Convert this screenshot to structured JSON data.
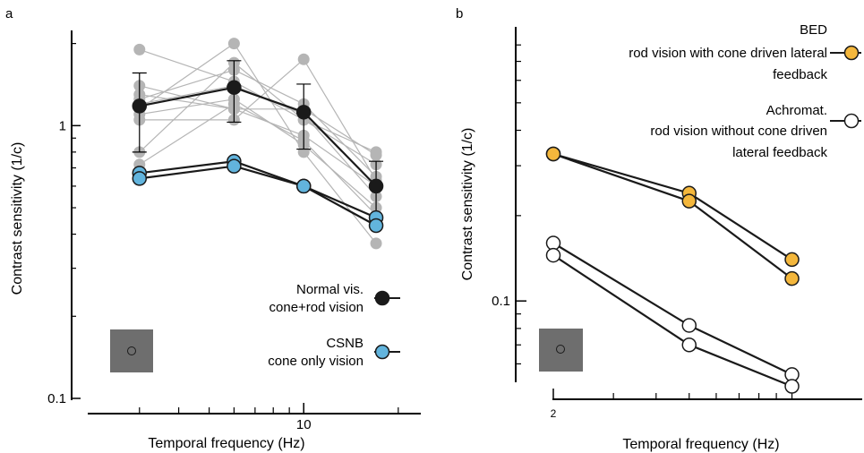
{
  "colors": {
    "normal": "#1a1a1a",
    "csnb": "#62b4dd",
    "individual": "#b5b5b5",
    "bed": "#f4b73c",
    "achromat": "#ffffff",
    "stimulus_box": "#6e6e6e",
    "line": "#1a1a1a"
  },
  "icon_names": [
    "stimulus-square-icon",
    "marker-filled-circle-icon",
    "marker-open-circle-icon"
  ],
  "chart_data": [
    {
      "type": "line",
      "panel_label": "a",
      "xlabel": "Temporal frequency (Hz)",
      "ylabel": "Contrast sensitivity (1/c)",
      "x_scale": "log",
      "y_scale": "log",
      "xlim": [
        2.5,
        19
      ],
      "ylim": [
        0.1,
        2.2
      ],
      "x_tick_labels": [
        "10"
      ],
      "y_tick_labels": [
        "0.1",
        "1"
      ],
      "x_minor_ticks": [
        3,
        4,
        5,
        6,
        7,
        8,
        9,
        10,
        20
      ],
      "grid": false,
      "legend": {
        "placement": "bottom-right",
        "entries": [
          {
            "series": "normal",
            "lines": [
              "Normal vis.",
              "cone+rod vision"
            ]
          },
          {
            "series": "csnb",
            "lines": [
              "CSNB",
              "cone only vision"
            ]
          }
        ]
      },
      "x": [
        3,
        6,
        10,
        17
      ],
      "individual_traces": [
        [
          1.9,
          1.45,
          1.05,
          0.72
        ],
        [
          1.3,
          1.15,
          0.92,
          0.6
        ],
        [
          1.2,
          1.4,
          1.1,
          0.55
        ],
        [
          1.1,
          1.25,
          0.85,
          0.5
        ],
        [
          1.05,
          1.05,
          1.75,
          0.63
        ],
        [
          0.8,
          1.7,
          1.05,
          0.8
        ],
        [
          0.72,
          1.2,
          0.88,
          0.47
        ],
        [
          1.15,
          2.0,
          0.8,
          0.37
        ],
        [
          1.25,
          1.6,
          1.2,
          0.65
        ],
        [
          1.4,
          1.15,
          1.15,
          0.78
        ]
      ],
      "series": [
        {
          "key": "normal",
          "values": [
            1.18,
            1.38,
            1.12,
            0.6
          ],
          "error": [
            0.38,
            0.35,
            0.3,
            0.14
          ]
        },
        {
          "key": "csnb",
          "values": [
            0.67,
            0.74,
            0.6,
            0.46
          ]
        },
        {
          "key": "csnb",
          "values": [
            0.64,
            0.71,
            0.6,
            0.43
          ]
        }
      ]
    },
    {
      "type": "line",
      "panel_label": "b",
      "xlabel": "Temporal frequency (Hz)",
      "ylabel": "Contrast sensitivity (1/c)",
      "x_scale": "log",
      "y_scale": "log",
      "xlim": [
        2,
        13
      ],
      "ylim": [
        0.045,
        0.9
      ],
      "x_tick_labels": [
        "2"
      ],
      "y_tick_labels": [
        "0.1"
      ],
      "grid": false,
      "legend": {
        "placement": "top-right",
        "entries": [
          {
            "series": "bed",
            "lines": [
              "BED",
              "rod vision with cone driven lateral",
              "feedback"
            ]
          },
          {
            "series": "achromat",
            "lines": [
              "Achromat.",
              "rod vision without cone driven",
              "lateral feedback"
            ]
          }
        ]
      },
      "x": [
        2,
        5,
        10
      ],
      "series": [
        {
          "key": "bed",
          "values": [
            0.33,
            0.24,
            0.14
          ]
        },
        {
          "key": "bed",
          "values": [
            0.33,
            0.225,
            0.12
          ]
        },
        {
          "key": "achromat",
          "values": [
            0.16,
            0.082,
            0.055
          ]
        },
        {
          "key": "achromat",
          "values": [
            0.145,
            0.07,
            0.05
          ]
        }
      ]
    }
  ]
}
